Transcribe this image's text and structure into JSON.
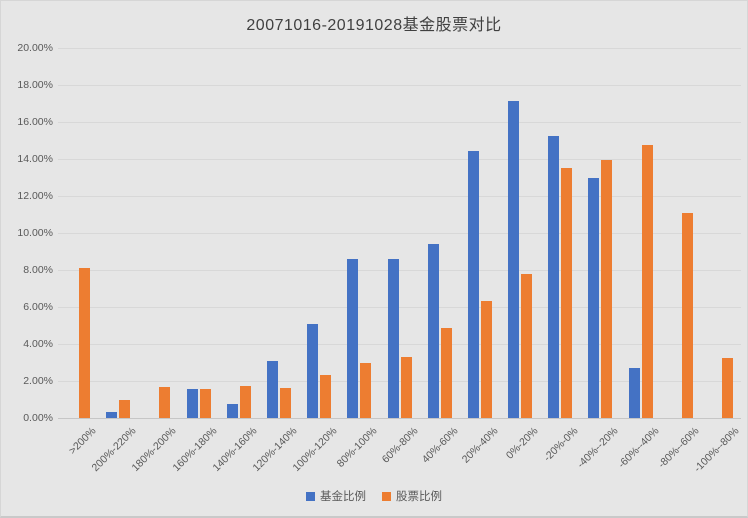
{
  "chart_data": {
    "type": "bar",
    "title": "20071016-20191028基金股票对比",
    "categories": [
      ">200%",
      "200%-220%",
      "180%-200%",
      "160%-180%",
      "140%-160%",
      "120%-140%",
      "100%-120%",
      "80%-100%",
      "60%-80%",
      "40%-60%",
      "20%-40%",
      "0%-20%",
      "-20%-0%",
      "-40%--20%",
      "-60%--40%",
      "-80%--60%",
      "-100%--80%"
    ],
    "series": [
      {
        "name": "基金比例",
        "color": "#4472C4",
        "values": [
          0,
          0.35,
          0,
          1.55,
          0.75,
          3.1,
          5.1,
          8.6,
          8.6,
          9.4,
          14.45,
          17.15,
          15.25,
          12.95,
          2.7,
          0,
          0
        ]
      },
      {
        "name": "股票比例",
        "color": "#ED7D31",
        "values": [
          8.1,
          1.0,
          1.65,
          1.55,
          1.75,
          1.6,
          2.35,
          3.0,
          3.3,
          4.85,
          6.3,
          7.8,
          13.5,
          13.95,
          14.75,
          11.1,
          3.25
        ]
      }
    ],
    "xlabel": "",
    "ylabel": "",
    "ylim": [
      0,
      20
    ],
    "y_step": 2,
    "y_tick_labels": [
      "0.00%",
      "2.00%",
      "4.00%",
      "6.00%",
      "8.00%",
      "10.00%",
      "12.00%",
      "14.00%",
      "16.00%",
      "18.00%",
      "20.00%"
    ],
    "grid": true,
    "legend_position": "bottom"
  },
  "colors": {
    "background": "#E6E6E6",
    "gridline": "#D8D8D8",
    "axis_line": "#C6C6C6",
    "tick_text": "#595959",
    "title_text": "#404040"
  }
}
